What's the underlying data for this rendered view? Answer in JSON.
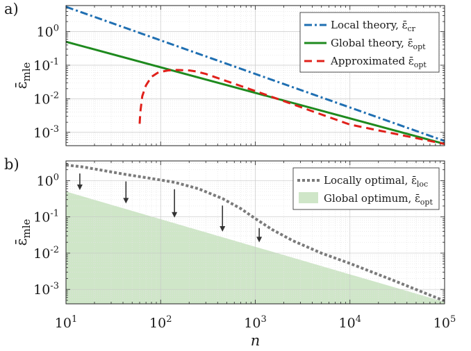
{
  "chart_data": [
    {
      "panel_label": "a)",
      "type": "line",
      "xscale": "log",
      "yscale": "log",
      "xlim": [
        10,
        100000
      ],
      "ylim": [
        0.0004,
        6
      ],
      "xlabel": "",
      "ylabel": "ε̄mle",
      "ylabel_main": "ε̄",
      "ylabel_sub": "mle",
      "y_ticks": [
        {
          "value": 1,
          "base": "10",
          "exp": "0"
        },
        {
          "value": 0.1,
          "base": "10",
          "exp": "-1"
        },
        {
          "value": 0.01,
          "base": "10",
          "exp": "-2"
        },
        {
          "value": 0.001,
          "base": "10",
          "exp": "-3"
        }
      ],
      "grid": true,
      "legend_position": "top-right",
      "series": [
        {
          "name": "Local theory, ε̄cr",
          "name_main": "Local theory, ε̄",
          "name_sub": "cr",
          "style": "dashdot",
          "color": "#1f6fb2",
          "points": [
            [
              10,
              5.5
            ],
            [
              100000,
              0.00055
            ]
          ]
        },
        {
          "name": "Global theory, ε̄opt",
          "name_main": "Global theory, ε̄",
          "name_sub": "opt",
          "style": "solid",
          "color": "#1e8a1e",
          "points": [
            [
              10,
              0.5
            ],
            [
              100000,
              0.00045
            ]
          ]
        },
        {
          "name": "Approximated ε̄opt",
          "name_main": "Approximated ε̄",
          "name_sub": "opt",
          "style": "dashed",
          "color": "#e0201a",
          "points": [
            [
              60,
              0.0018
            ],
            [
              61,
              0.004
            ],
            [
              64,
              0.012
            ],
            [
              70,
              0.025
            ],
            [
              80,
              0.045
            ],
            [
              95,
              0.062
            ],
            [
              120,
              0.07
            ],
            [
              150,
              0.072
            ],
            [
              200,
              0.07
            ],
            [
              240,
              0.065
            ],
            [
              300,
              0.055
            ],
            [
              1000,
              0.017
            ],
            [
              10000,
              0.0017
            ],
            [
              100000,
              0.00045
            ]
          ]
        }
      ]
    },
    {
      "panel_label": "b)",
      "type": "area",
      "xscale": "log",
      "yscale": "log",
      "xlim": [
        10,
        100000
      ],
      "ylim": [
        0.0004,
        3.5
      ],
      "xlabel": "n",
      "ylabel": "ε̄mle",
      "ylabel_main": "ε̄",
      "ylabel_sub": "mle",
      "x_ticks": [
        {
          "value": 10,
          "base": "10",
          "exp": "1"
        },
        {
          "value": 100,
          "base": "10",
          "exp": "2"
        },
        {
          "value": 1000,
          "base": "10",
          "exp": "3"
        },
        {
          "value": 10000,
          "base": "10",
          "exp": "4"
        },
        {
          "value": 100000,
          "base": "10",
          "exp": "5"
        }
      ],
      "y_ticks": [
        {
          "value": 1,
          "base": "10",
          "exp": "0"
        },
        {
          "value": 0.1,
          "base": "10",
          "exp": "-1"
        },
        {
          "value": 0.01,
          "base": "10",
          "exp": "-2"
        },
        {
          "value": 0.001,
          "base": "10",
          "exp": "-3"
        }
      ],
      "grid": true,
      "legend_position": "top-right",
      "series": [
        {
          "name": "Locally optimal, ε̄loc",
          "name_main": "Locally optimal, ε̄",
          "name_sub": "loc",
          "style": "dotted",
          "color": "#7a7a7a",
          "points": [
            [
              10,
              2.7
            ],
            [
              15,
              2.4
            ],
            [
              25,
              1.9
            ],
            [
              45,
              1.45
            ],
            [
              80,
              1.15
            ],
            [
              140,
              0.9
            ],
            [
              250,
              0.6
            ],
            [
              450,
              0.32
            ],
            [
              700,
              0.17
            ],
            [
              1000,
              0.09
            ],
            [
              1500,
              0.045
            ],
            [
              2500,
              0.022
            ],
            [
              5000,
              0.01
            ],
            [
              10000,
              0.0052
            ],
            [
              30000,
              0.0017
            ],
            [
              100000,
              0.00048
            ]
          ]
        },
        {
          "name": "Global optimum, ε̄opt",
          "name_main": "Global optimum, ε̄",
          "name_sub": "opt",
          "style": "fill",
          "color": "#cfe6c8",
          "points": [
            [
              10,
              0.5
            ],
            [
              100000,
              0.00045
            ]
          ]
        }
      ],
      "arrows_x": [
        14,
        43,
        140,
        450,
        1100
      ]
    }
  ]
}
